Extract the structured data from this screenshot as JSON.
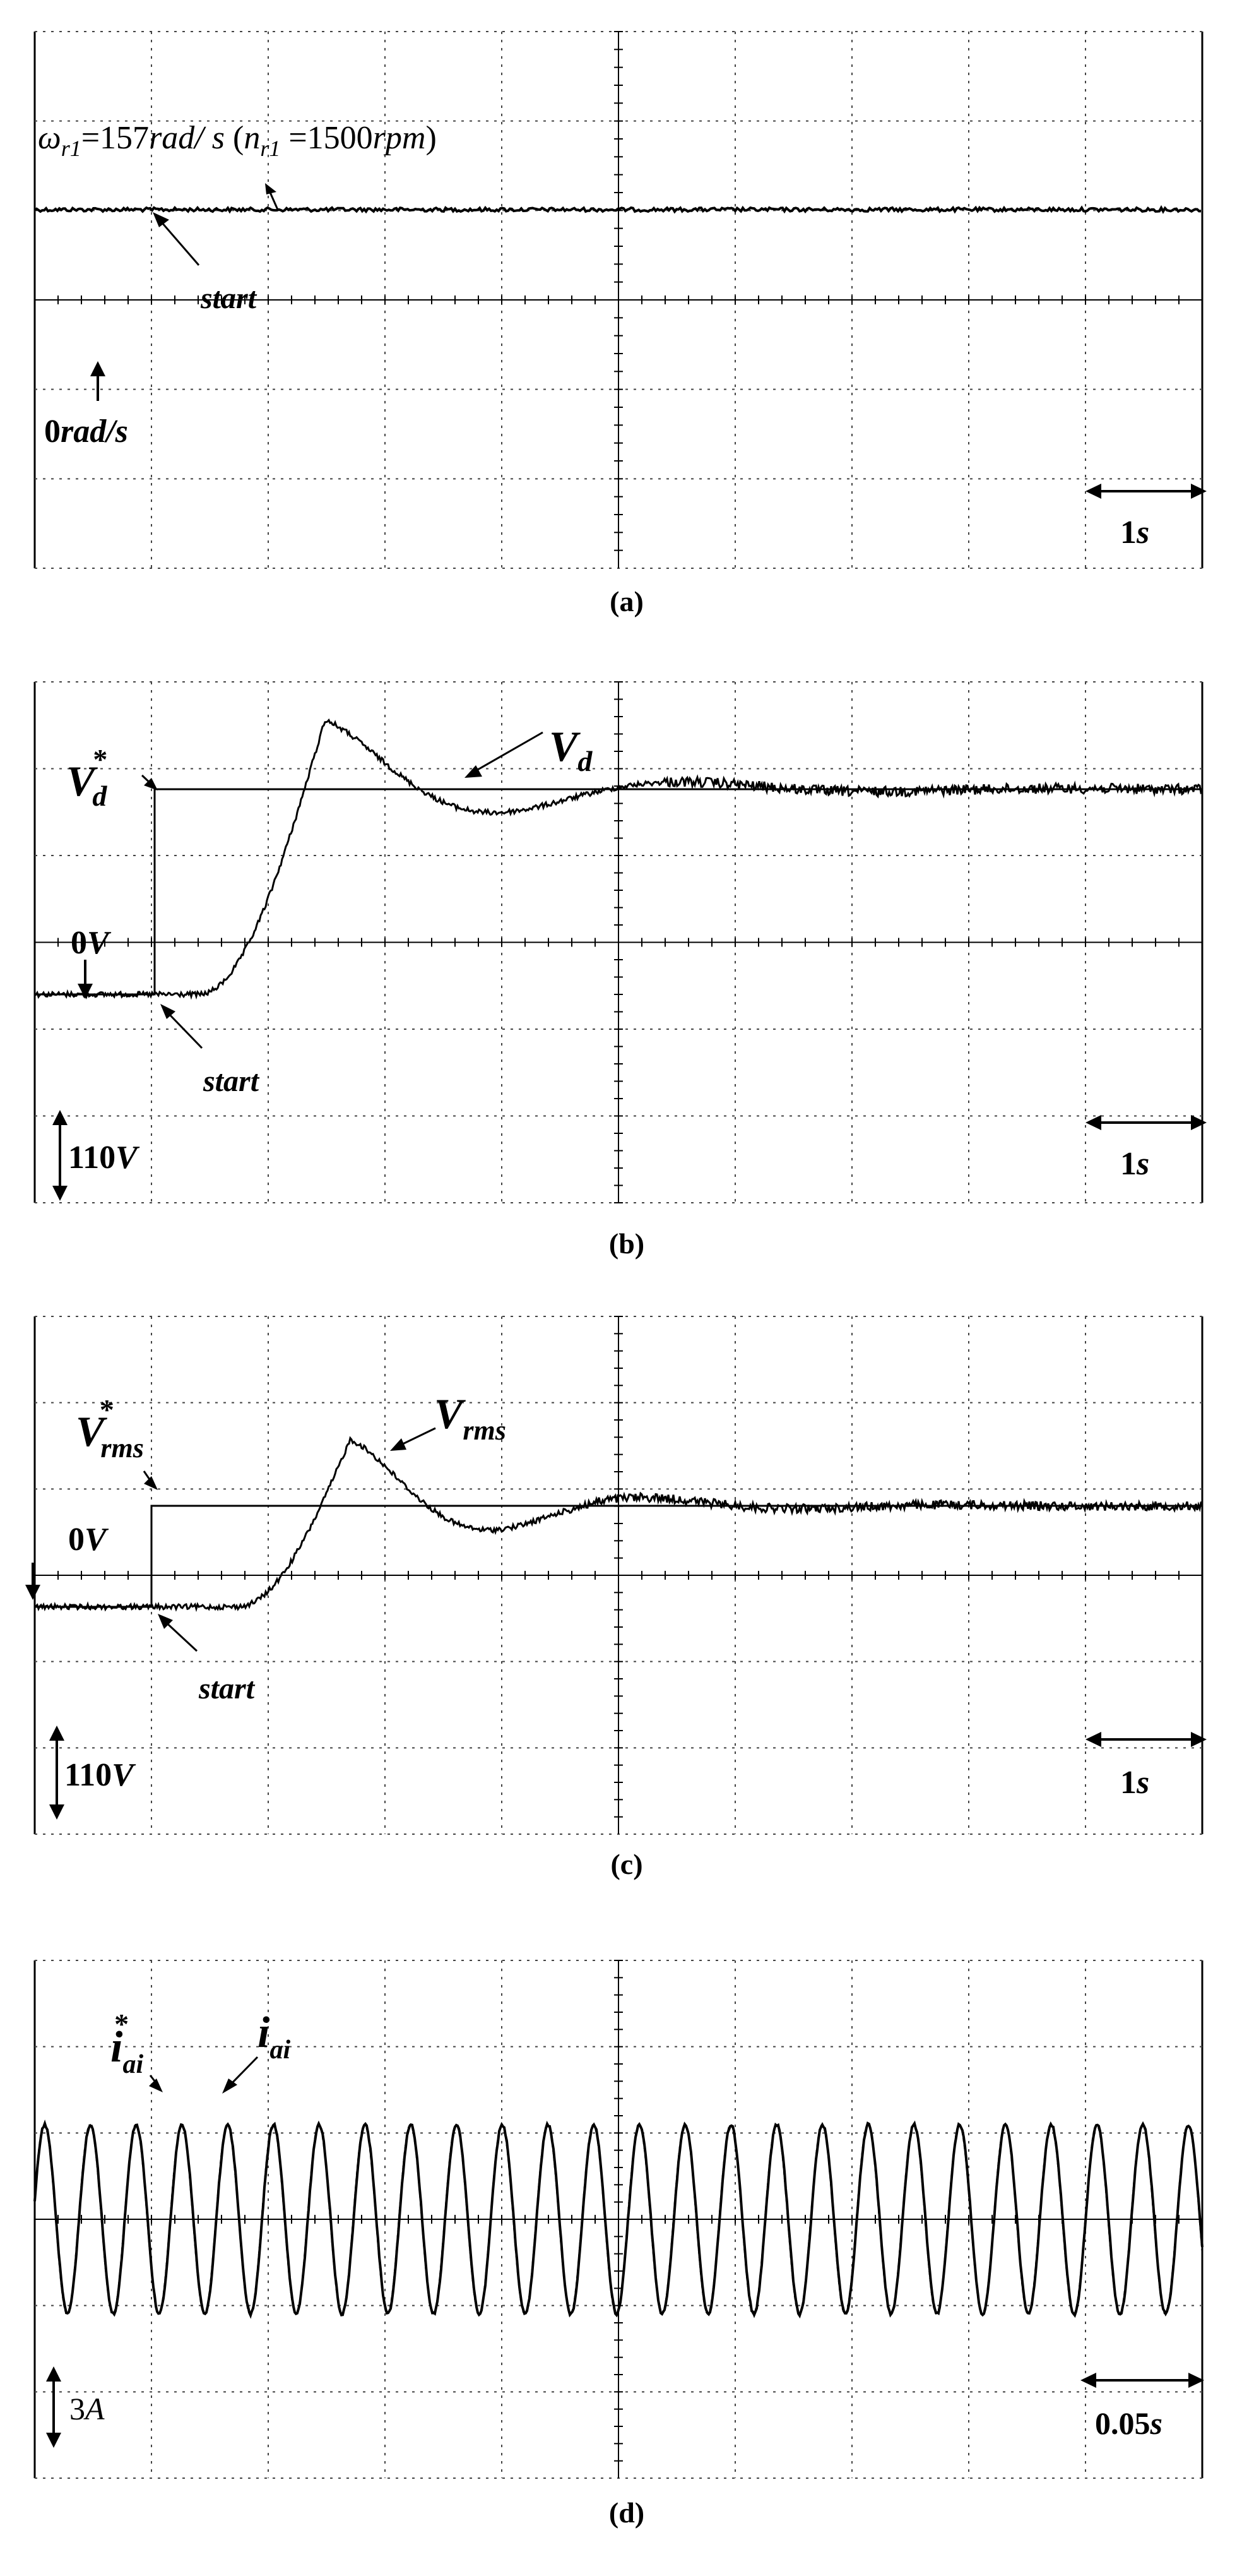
{
  "chart_data": [
    {
      "type": "line",
      "panel": "(a)",
      "caption": "(a)",
      "series": [
        {
          "symbol": "ω_r1",
          "value": 157,
          "value_unit": "rad/s",
          "equivalent_value": 1500,
          "equivalent_unit": "rpm"
        }
      ],
      "x_scale": "1s",
      "y_zero": "0rad/s",
      "labels": {
        "main_symbol": "ω",
        "main_sub": "r1",
        "main_eq": "=157",
        "main_unit": "rad/ s",
        "paren_open": " (",
        "paren_symbol": "n",
        "paren_sub": "r1",
        "paren_eq": " =1500",
        "paren_unit": "rpm",
        "paren_close": ")",
        "start": "start",
        "zero_num": "0",
        "zero_unit": "rad/s",
        "time_num": "1",
        "time_unit": "s"
      }
    },
    {
      "type": "line",
      "panel": "(b)",
      "caption": "(b)",
      "series": [
        {
          "symbol": "V_d*",
          "kind": "reference step"
        },
        {
          "symbol": "V_d",
          "kind": "damped oscillatory response"
        }
      ],
      "x_scale": "1s",
      "y_scale": "110V",
      "labels": {
        "ref_symbol": "V",
        "ref_sub": "d",
        "ref_sup": "*",
        "meas_symbol": "V",
        "meas_sub": "d",
        "zero_num": "0",
        "zero_unit": "V",
        "start": "start",
        "scale_num": "110",
        "scale_unit": "V",
        "time_num": "1",
        "time_unit": "s"
      }
    },
    {
      "type": "line",
      "panel": "(c)",
      "caption": "(c)",
      "series": [
        {
          "symbol": "V_rms*",
          "kind": "reference step"
        },
        {
          "symbol": "V_rms",
          "kind": "damped oscillatory response"
        }
      ],
      "x_scale": "1s",
      "y_scale": "110V",
      "labels": {
        "ref_symbol": "V",
        "ref_sub": "rms",
        "ref_sup": "*",
        "meas_symbol": "V",
        "meas_sub": "rms",
        "zero_num": "0",
        "zero_unit": "V",
        "start": "start",
        "scale_num": "110",
        "scale_unit": "V",
        "time_num": "1",
        "time_unit": "s"
      }
    },
    {
      "type": "line",
      "panel": "(d)",
      "caption": "(d)",
      "series": [
        {
          "symbol": "i_ai*",
          "kind": "sinusoidal reference current"
        },
        {
          "symbol": "i_ai",
          "kind": "sinusoidal current"
        }
      ],
      "x_scale": "0.05s",
      "y_scale": "3A",
      "labels": {
        "ref_symbol": "i",
        "ref_sub": "ai",
        "ref_sup": "*",
        "meas_symbol": "i",
        "meas_sub": "ai",
        "scale_num": "3",
        "scale_unit": "A",
        "time_num": "0.05",
        "time_unit": "s"
      }
    }
  ]
}
